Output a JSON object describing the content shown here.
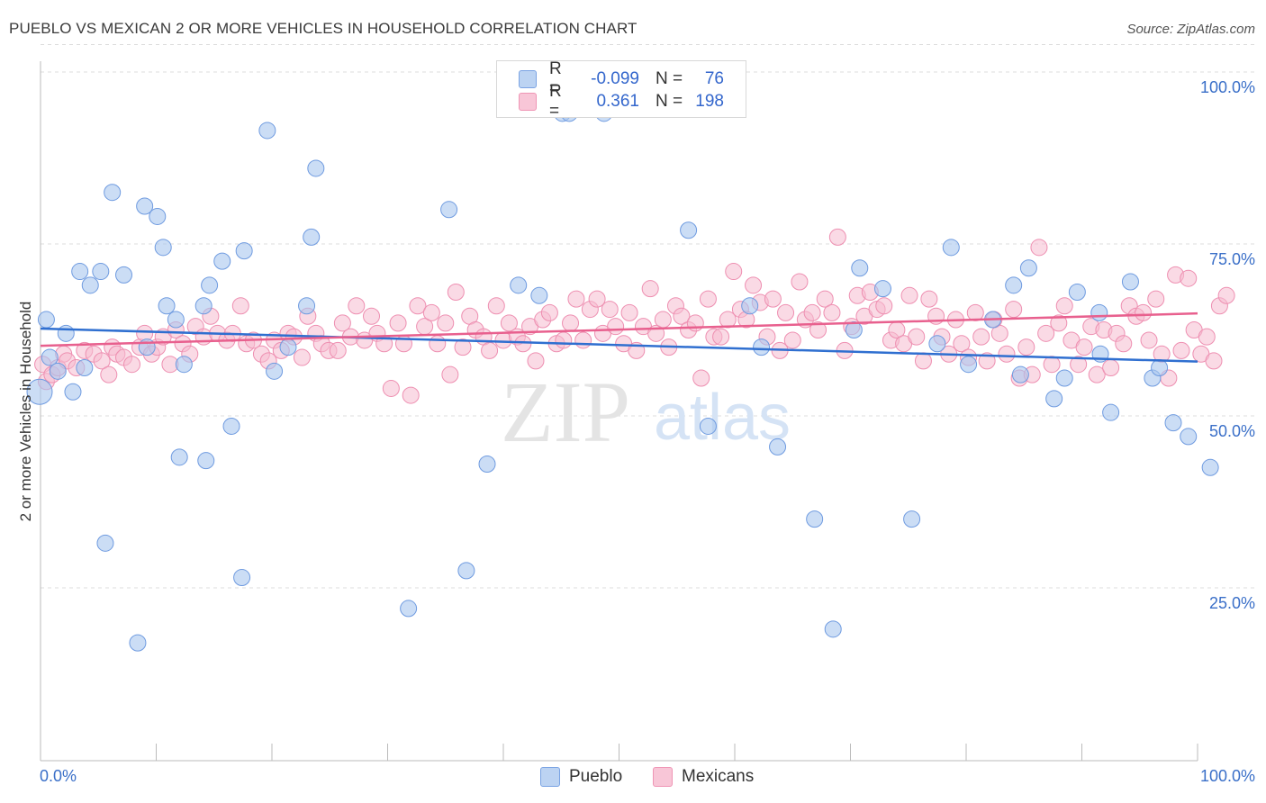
{
  "title": "PUEBLO VS MEXICAN 2 OR MORE VEHICLES IN HOUSEHOLD CORRELATION CHART",
  "source": "Source: ZipAtlas.com",
  "watermark": {
    "zip": "ZIP",
    "atlas": "atlas"
  },
  "legend": {
    "r_label": "R =",
    "n_label": "N =",
    "rows": [
      {
        "r": "-0.099",
        "n": "76"
      },
      {
        "r": "0.361",
        "n": "198"
      }
    ]
  },
  "colors": {
    "pueblo_fill": "#a9c6ee",
    "pueblo_stroke": "#6f9be0",
    "pueblo_line": "#2f6fd0",
    "mexican_fill": "#f6bcd0",
    "mexican_stroke": "#ee8fb1",
    "mexican_line": "#e8608e",
    "tick_text": "#3a6fc8",
    "grid": "#dddddd"
  },
  "chart_data": {
    "type": "scatter",
    "title": "PUEBLO VS MEXICAN 2 OR MORE VEHICLES IN HOUSEHOLD CORRELATION CHART",
    "xlabel": "",
    "ylabel": "2 or more Vehicles in Household",
    "xlim": [
      0,
      100
    ],
    "ylim": [
      0,
      104
    ],
    "x_tick_labels": [
      "0.0%",
      "100.0%"
    ],
    "y_ticks": [
      25,
      50,
      75,
      100
    ],
    "y_tick_labels": [
      "25.0%",
      "50.0%",
      "75.0%",
      "100.0%"
    ],
    "grid": "horizontal dashed",
    "legend_position": "top-center and bottom",
    "series": [
      {
        "name": "Pueblo",
        "r": -0.099,
        "n": 76,
        "trend": [
          [
            0,
            62.7
          ],
          [
            100,
            57.9
          ]
        ],
        "points": [
          [
            0.5,
            64
          ],
          [
            0.8,
            58.5
          ],
          [
            1.5,
            56.5
          ],
          [
            2.2,
            62
          ],
          [
            2.8,
            53.5
          ],
          [
            3.4,
            71
          ],
          [
            3.8,
            57
          ],
          [
            4.3,
            69
          ],
          [
            5.2,
            71
          ],
          [
            5.6,
            31.5
          ],
          [
            6.2,
            82.5
          ],
          [
            7.2,
            70.5
          ],
          [
            8.4,
            17
          ],
          [
            9.0,
            80.5
          ],
          [
            9.2,
            60
          ],
          [
            10.1,
            79
          ],
          [
            10.6,
            74.5
          ],
          [
            10.9,
            66
          ],
          [
            11.7,
            64
          ],
          [
            12.0,
            44
          ],
          [
            12.4,
            57.5
          ],
          [
            14.1,
            66
          ],
          [
            14.3,
            43.5
          ],
          [
            14.6,
            69
          ],
          [
            15.7,
            72.5
          ],
          [
            16.5,
            48.5
          ],
          [
            17.4,
            26.5
          ],
          [
            17.6,
            74
          ],
          [
            19.6,
            91.5
          ],
          [
            20.2,
            56.5
          ],
          [
            21.4,
            60
          ],
          [
            23.0,
            66
          ],
          [
            23.4,
            76
          ],
          [
            23.8,
            86
          ],
          [
            31.8,
            22
          ],
          [
            35.3,
            80
          ],
          [
            36.8,
            27.5
          ],
          [
            38.6,
            43
          ],
          [
            41.3,
            69
          ],
          [
            43.1,
            67.5
          ],
          [
            45.1,
            94
          ],
          [
            45.7,
            94
          ],
          [
            48.7,
            94
          ],
          [
            56.0,
            77
          ],
          [
            57.7,
            48.5
          ],
          [
            61.3,
            66
          ],
          [
            62.3,
            60
          ],
          [
            63.7,
            45.5
          ],
          [
            66.9,
            35
          ],
          [
            68.5,
            19
          ],
          [
            70.3,
            62.5
          ],
          [
            70.8,
            71.5
          ],
          [
            72.8,
            68.5
          ],
          [
            75.3,
            35
          ],
          [
            77.5,
            60.5
          ],
          [
            78.7,
            74.5
          ],
          [
            80.2,
            57.5
          ],
          [
            82.3,
            64
          ],
          [
            84.1,
            69
          ],
          [
            84.7,
            56
          ],
          [
            85.4,
            71.5
          ],
          [
            87.6,
            52.5
          ],
          [
            88.5,
            55.5
          ],
          [
            89.6,
            68
          ],
          [
            91.5,
            65
          ],
          [
            91.6,
            59
          ],
          [
            92.5,
            50.5
          ],
          [
            94.2,
            69.5
          ],
          [
            96.1,
            55.5
          ],
          [
            96.7,
            57
          ],
          [
            97.9,
            49
          ],
          [
            99.2,
            47
          ],
          [
            101.1,
            42.5
          ]
        ]
      },
      {
        "name": "Mexicans",
        "r": 0.361,
        "n": 198,
        "trend": [
          [
            0,
            60.2
          ],
          [
            100,
            64.9
          ]
        ],
        "points": [
          [
            0.2,
            57.5
          ],
          [
            0.5,
            55
          ],
          [
            1.0,
            56
          ],
          [
            1.5,
            57
          ],
          [
            2.0,
            59
          ],
          [
            2.3,
            58
          ],
          [
            3.1,
            57
          ],
          [
            3.8,
            59.5
          ],
          [
            4.6,
            59
          ],
          [
            5.3,
            58
          ],
          [
            5.9,
            56
          ],
          [
            6.2,
            60
          ],
          [
            6.6,
            59
          ],
          [
            7.2,
            58.5
          ],
          [
            7.9,
            57.5
          ],
          [
            8.6,
            60
          ],
          [
            9.0,
            62
          ],
          [
            9.6,
            59
          ],
          [
            10.1,
            60
          ],
          [
            10.6,
            61.5
          ],
          [
            11.2,
            57.5
          ],
          [
            11.7,
            62.5
          ],
          [
            12.3,
            60.5
          ],
          [
            12.9,
            59
          ],
          [
            13.4,
            63
          ],
          [
            14.1,
            61.5
          ],
          [
            14.7,
            64.5
          ],
          [
            15.3,
            62
          ],
          [
            16.1,
            61
          ],
          [
            16.6,
            62
          ],
          [
            17.3,
            66
          ],
          [
            17.8,
            60.5
          ],
          [
            18.4,
            61
          ],
          [
            19.1,
            59
          ],
          [
            19.7,
            58
          ],
          [
            20.2,
            61
          ],
          [
            20.8,
            59.5
          ],
          [
            21.4,
            62
          ],
          [
            21.9,
            61.5
          ],
          [
            22.6,
            58.5
          ],
          [
            23.1,
            64.5
          ],
          [
            23.8,
            62
          ],
          [
            24.3,
            60.5
          ],
          [
            24.9,
            59.5
          ],
          [
            25.7,
            59.5
          ],
          [
            26.1,
            63.5
          ],
          [
            26.8,
            61.5
          ],
          [
            27.3,
            66
          ],
          [
            28.0,
            61
          ],
          [
            28.6,
            64.5
          ],
          [
            29.1,
            62
          ],
          [
            29.7,
            60.5
          ],
          [
            30.3,
            54
          ],
          [
            30.9,
            63.5
          ],
          [
            31.4,
            60.5
          ],
          [
            32.0,
            53
          ],
          [
            32.6,
            66
          ],
          [
            33.2,
            63
          ],
          [
            33.8,
            65
          ],
          [
            34.3,
            60.5
          ],
          [
            35.0,
            63.5
          ],
          [
            35.4,
            56
          ],
          [
            35.9,
            68
          ],
          [
            36.5,
            60
          ],
          [
            37.1,
            64.5
          ],
          [
            37.6,
            62.5
          ],
          [
            38.3,
            61.5
          ],
          [
            38.8,
            59.5
          ],
          [
            39.4,
            66
          ],
          [
            40.0,
            61
          ],
          [
            40.5,
            63.5
          ],
          [
            41.2,
            61.5
          ],
          [
            41.7,
            60.5
          ],
          [
            42.3,
            63
          ],
          [
            42.8,
            58
          ],
          [
            43.4,
            64
          ],
          [
            44.0,
            65
          ],
          [
            44.6,
            60.5
          ],
          [
            45.2,
            61
          ],
          [
            45.8,
            63.5
          ],
          [
            46.3,
            67
          ],
          [
            46.9,
            61
          ],
          [
            47.5,
            65.5
          ],
          [
            48.1,
            67
          ],
          [
            48.6,
            62
          ],
          [
            49.2,
            65.5
          ],
          [
            49.7,
            63
          ],
          [
            50.4,
            60.5
          ],
          [
            50.9,
            65
          ],
          [
            51.5,
            59.5
          ],
          [
            52.1,
            63
          ],
          [
            52.7,
            68.5
          ],
          [
            53.2,
            62
          ],
          [
            53.8,
            64
          ],
          [
            54.3,
            60
          ],
          [
            54.9,
            66
          ],
          [
            55.4,
            64.5
          ],
          [
            56.0,
            62.5
          ],
          [
            56.6,
            63.5
          ],
          [
            57.1,
            55.5
          ],
          [
            57.7,
            67
          ],
          [
            58.2,
            61.5
          ],
          [
            58.8,
            61.5
          ],
          [
            59.4,
            64
          ],
          [
            59.9,
            71
          ],
          [
            60.5,
            65.5
          ],
          [
            61.0,
            64
          ],
          [
            61.6,
            69
          ],
          [
            62.2,
            66.5
          ],
          [
            62.8,
            61.5
          ],
          [
            63.3,
            67
          ],
          [
            63.9,
            59.5
          ],
          [
            64.4,
            65
          ],
          [
            65.0,
            61
          ],
          [
            65.6,
            69.5
          ],
          [
            66.1,
            64
          ],
          [
            66.7,
            65
          ],
          [
            67.2,
            62.5
          ],
          [
            67.8,
            67
          ],
          [
            68.4,
            65
          ],
          [
            68.9,
            76
          ],
          [
            69.5,
            59.5
          ],
          [
            70.1,
            63
          ],
          [
            70.6,
            67.5
          ],
          [
            71.2,
            64.5
          ],
          [
            71.7,
            68
          ],
          [
            72.3,
            65.5
          ],
          [
            72.9,
            66
          ],
          [
            73.5,
            61
          ],
          [
            74.0,
            62.5
          ],
          [
            74.6,
            60.5
          ],
          [
            75.1,
            67.5
          ],
          [
            75.7,
            61.5
          ],
          [
            76.3,
            58
          ],
          [
            76.8,
            67
          ],
          [
            77.4,
            64.5
          ],
          [
            77.9,
            61.5
          ],
          [
            78.5,
            59
          ],
          [
            79.1,
            64
          ],
          [
            79.6,
            60.5
          ],
          [
            80.2,
            58.5
          ],
          [
            80.8,
            65
          ],
          [
            81.3,
            61.5
          ],
          [
            81.8,
            58
          ],
          [
            82.4,
            64
          ],
          [
            82.9,
            62
          ],
          [
            83.5,
            59
          ],
          [
            84.1,
            65.5
          ],
          [
            84.6,
            55.5
          ],
          [
            85.2,
            60
          ],
          [
            85.7,
            56
          ],
          [
            86.3,
            74.5
          ],
          [
            86.9,
            62
          ],
          [
            87.4,
            57.5
          ],
          [
            88.0,
            63.5
          ],
          [
            88.5,
            66
          ],
          [
            89.1,
            61
          ],
          [
            89.7,
            57.5
          ],
          [
            90.2,
            60
          ],
          [
            90.8,
            63
          ],
          [
            91.3,
            56
          ],
          [
            91.9,
            62.5
          ],
          [
            92.5,
            57
          ],
          [
            93.0,
            62
          ],
          [
            93.6,
            60.5
          ],
          [
            94.1,
            66
          ],
          [
            94.7,
            64.5
          ],
          [
            95.3,
            65
          ],
          [
            95.8,
            61
          ],
          [
            96.4,
            67
          ],
          [
            96.9,
            59
          ],
          [
            97.5,
            55.5
          ],
          [
            98.1,
            70.5
          ],
          [
            98.6,
            59.5
          ],
          [
            99.2,
            70
          ],
          [
            99.7,
            62.5
          ],
          [
            100.3,
            59
          ],
          [
            100.8,
            61.5
          ],
          [
            101.4,
            58
          ],
          [
            101.9,
            66
          ],
          [
            102.5,
            67.5
          ]
        ]
      }
    ]
  },
  "bottom_legend": [
    "Pueblo",
    "Mexicans"
  ]
}
